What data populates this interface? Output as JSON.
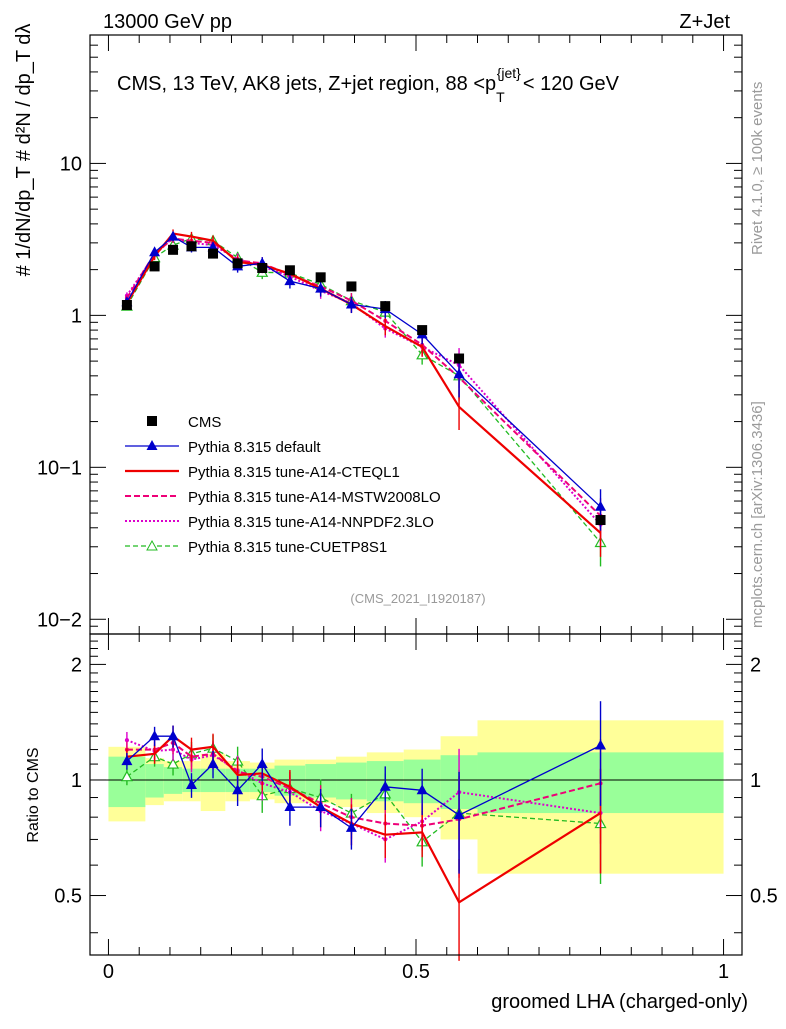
{
  "header": {
    "left": "13000 GeV pp",
    "right": "Z+Jet",
    "title": "CMS, 13 TeV, AK8 jets, Z+jet region, 88 <p",
    "title_sup": "{jet}",
    "title_sub": "T",
    "title_end": "< 120 GeV",
    "ref": "(CMS_2021_I1920187)"
  },
  "side_labels": {
    "rivet": "Rivet 4.1.0, ≥ 100k events",
    "mcplots": "mcplots.cern.ch [arXiv:1306.3436]"
  },
  "axes": {
    "ylabel_top": "#  1/dN/dp_T  #  d²N / dp_T dλ",
    "ylabel_bottom": "Ratio to CMS",
    "xlabel": "groomed LHA (charged-only)",
    "top_ticks": [
      "10−2",
      "10−1",
      "1",
      "10"
    ],
    "bottom_ticks": [
      "0.5",
      "1",
      "2"
    ],
    "x_ticks": [
      "0",
      "0.5",
      "1"
    ]
  },
  "colors": {
    "data": "#000000",
    "default": "#0000cc",
    "cteql1": "#ee0000",
    "mstw": "#ee0077",
    "nnpdf": "#dd00cc",
    "cuetp8s1": "#22bb22",
    "band_inner": "#99ff99",
    "band_outer": "#ffff99"
  },
  "chart_data": {
    "type": "line",
    "x_edges": [
      0.0,
      0.06,
      0.09,
      0.12,
      0.15,
      0.19,
      0.23,
      0.27,
      0.32,
      0.37,
      0.42,
      0.48,
      0.54,
      0.6,
      1.0
    ],
    "x": [
      0.03,
      0.075,
      0.105,
      0.135,
      0.17,
      0.21,
      0.25,
      0.295,
      0.345,
      0.395,
      0.45,
      0.51,
      0.57,
      0.8
    ],
    "xlim": [
      -0.03,
      1.03
    ],
    "top_ylim": [
      0.008,
      70
    ],
    "bottom_ylim": [
      0.35,
      2.4
    ],
    "series": [
      {
        "name": "CMS",
        "key": "data",
        "values": [
          1.17,
          2.1,
          2.7,
          2.85,
          2.55,
          2.2,
          2.05,
          1.98,
          1.78,
          1.55,
          1.15,
          0.8,
          0.52,
          0.045
        ],
        "ratio": [
          1,
          1,
          1,
          1,
          1,
          1,
          1,
          1,
          1,
          1,
          1,
          1,
          1,
          1
        ]
      },
      {
        "name": "Pythia 8.315 default",
        "key": "default",
        "values": [
          1.22,
          2.6,
          3.3,
          2.8,
          2.8,
          2.1,
          2.2,
          1.68,
          1.5,
          1.18,
          1.1,
          0.75,
          0.41,
          0.055
        ],
        "ratio": [
          1.12,
          1.3,
          1.3,
          0.97,
          1.1,
          0.94,
          1.1,
          0.85,
          0.85,
          0.75,
          0.96,
          0.94,
          0.81,
          1.23
        ]
      },
      {
        "name": "Pythia 8.315 tune-A14-CTEQL1",
        "key": "cteql1",
        "values": [
          1.2,
          2.45,
          3.45,
          3.3,
          3.1,
          2.25,
          2.15,
          1.88,
          1.5,
          1.18,
          0.85,
          0.62,
          0.25,
          0.037
        ],
        "ratio": [
          1.15,
          1.17,
          1.3,
          1.2,
          1.22,
          1.03,
          1.04,
          0.96,
          0.85,
          0.77,
          0.72,
          0.73,
          0.48,
          0.82
        ]
      },
      {
        "name": "Pythia 8.315 tune-A14-MSTW2008LO",
        "key": "mstw",
        "values": [
          1.3,
          2.55,
          3.2,
          3.1,
          3.0,
          2.3,
          2.2,
          1.85,
          1.55,
          1.25,
          0.92,
          0.64,
          0.39,
          0.048
        ],
        "ratio": [
          1.2,
          1.2,
          1.25,
          1.15,
          1.17,
          1.05,
          1.02,
          0.95,
          0.87,
          0.8,
          0.77,
          0.76,
          0.79,
          0.98
        ]
      },
      {
        "name": "Pythia 8.315 tune-A14-NNPDF2.3LO",
        "key": "nnpdf",
        "values": [
          1.35,
          2.5,
          3.25,
          3.0,
          2.9,
          2.35,
          2.1,
          1.8,
          1.45,
          1.2,
          0.82,
          0.62,
          0.47,
          0.042
        ],
        "ratio": [
          1.27,
          1.19,
          1.2,
          1.13,
          1.16,
          1.06,
          0.98,
          0.93,
          0.83,
          0.77,
          0.7,
          0.78,
          0.93,
          0.82
        ]
      },
      {
        "name": "Pythia 8.315 tune-CUETP8S1",
        "key": "cuetp8s1",
        "values": [
          1.15,
          2.4,
          2.9,
          3.2,
          3.1,
          2.4,
          1.92,
          1.9,
          1.6,
          1.25,
          1.05,
          0.55,
          0.4,
          0.032
        ],
        "ratio": [
          1.02,
          1.15,
          1.1,
          1.17,
          1.21,
          1.12,
          0.91,
          0.95,
          0.9,
          0.82,
          0.92,
          0.69,
          0.82,
          0.77
        ]
      }
    ],
    "bands": {
      "inner": [
        0.15,
        0.1,
        0.08,
        0.07,
        0.07,
        0.07,
        0.07,
        0.09,
        0.1,
        0.11,
        0.12,
        0.13,
        0.16,
        0.18
      ],
      "outer": [
        0.22,
        0.14,
        0.12,
        0.12,
        0.17,
        0.12,
        0.11,
        0.13,
        0.13,
        0.15,
        0.18,
        0.2,
        0.3,
        0.43
      ]
    }
  }
}
